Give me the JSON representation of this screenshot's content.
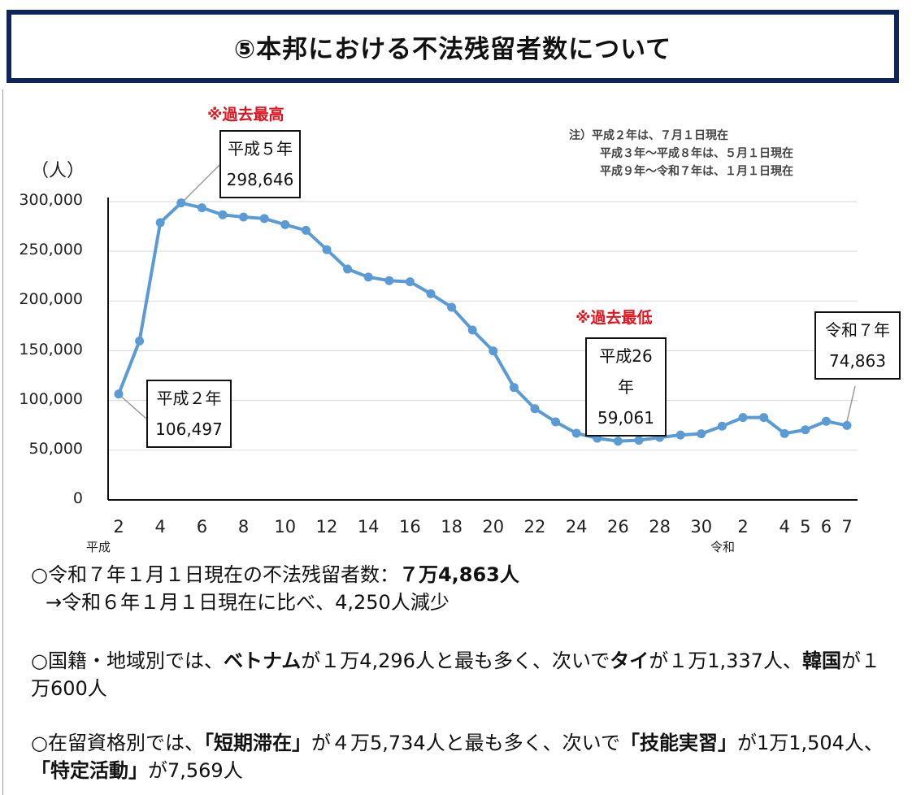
{
  "header": {
    "title": "⑤本邦における不法残留者数について"
  },
  "annotations": {
    "max_label": "※過去最高",
    "min_label": "※過去最低"
  },
  "notes": [
    "注）平成２年は、７月１日現在",
    "平成３年～平成８年は、５月１日現在",
    "平成９年～令和７年は、１月１日現在"
  ],
  "chart_data": {
    "type": "line",
    "ylabel": "（人）",
    "ylim": [
      0,
      300000
    ],
    "y_ticks": [
      "300,000",
      "250,000",
      "200,000",
      "150,000",
      "100,000",
      "50,000",
      "0"
    ],
    "y_tick_values": [
      300000,
      250000,
      200000,
      150000,
      100000,
      50000,
      0
    ],
    "grid": true,
    "series_color": "#5b9bd5",
    "x": [
      "平成2",
      "平成3",
      "平成4",
      "平成5",
      "平成6",
      "平成7",
      "平成8",
      "平成9",
      "平成10",
      "平成11",
      "平成12",
      "平成13",
      "平成14",
      "平成15",
      "平成16",
      "平成17",
      "平成18",
      "平成19",
      "平成20",
      "平成21",
      "平成22",
      "平成23",
      "平成24",
      "平成25",
      "平成26",
      "平成27",
      "平成28",
      "平成29",
      "平成30",
      "平成31",
      "令和2",
      "令和3",
      "令和4",
      "令和5",
      "令和6",
      "令和7"
    ],
    "tick_labels": [
      "2",
      "",
      "4",
      "",
      "6",
      "",
      "8",
      "",
      "10",
      "",
      "12",
      "",
      "14",
      "",
      "16",
      "",
      "18",
      "",
      "20",
      "",
      "22",
      "",
      "24",
      "",
      "26",
      "",
      "28",
      "",
      "30",
      "",
      "2",
      "",
      "4",
      "5",
      "6",
      "7"
    ],
    "era_labels": [
      {
        "label": "平成",
        "index": 0
      },
      {
        "label": "令和",
        "index": 30
      }
    ],
    "values": [
      106497,
      159828,
      278892,
      298646,
      293800,
      286704,
      284500,
      282986,
      276810,
      271048,
      251697,
      232121,
      224067,
      220552,
      219418,
      207299,
      193745,
      170839,
      149785,
      113072,
      91778,
      78488,
      67065,
      62009,
      59061,
      60007,
      62818,
      65270,
      66498,
      74167,
      82892,
      82868,
      66759,
      70491,
      79113,
      74863
    ],
    "callouts": [
      {
        "index": 0,
        "year": "平成２年",
        "value": "106,497"
      },
      {
        "index": 3,
        "year": "平成５年",
        "value": "298,646"
      },
      {
        "index": 24,
        "year": "平成26年",
        "value": "59,061"
      },
      {
        "index": 35,
        "year": "令和７年",
        "value": "74,863"
      }
    ]
  },
  "summary": {
    "p1": {
      "a": "○令和７年１月１日現在の不法残留者数：",
      "b": "７万4,863人",
      "c": "→令和６年１月１日現在に比べ、4,250人減少"
    },
    "p2": {
      "a": "○国籍・地域別では、",
      "b": "ベトナム",
      "c": "が１万4,296人と最も多く、次いで",
      "d": "タイ",
      "e": "が１万1,337人、",
      "f": "韓国",
      "g": "が１万600人"
    },
    "p3": {
      "a": "○在留資格別では、",
      "b": "「短期滞在」",
      "c": "が４万5,734人と最も多く、次いで",
      "d": "「技能実習」",
      "e": "が1万1,504人、",
      "f": "「特定活動」",
      "g": "が7,569人"
    }
  }
}
